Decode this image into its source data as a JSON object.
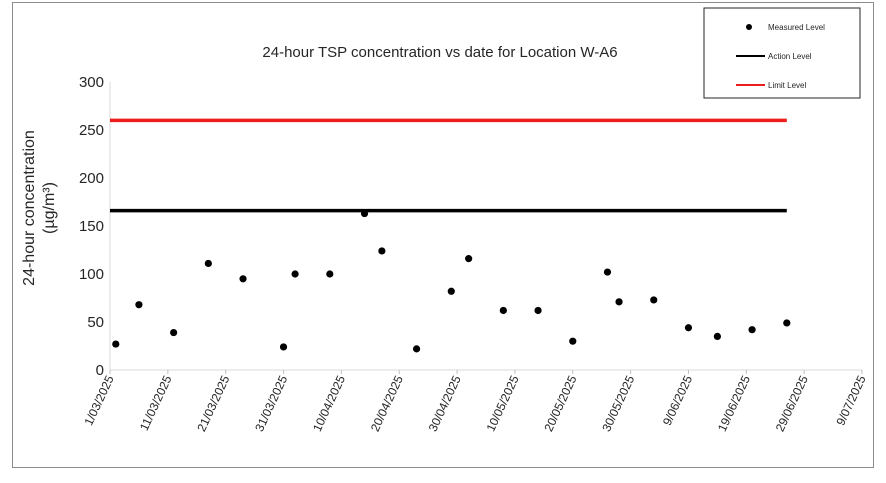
{
  "chart_data": {
    "type": "scatter",
    "title": "24-hour TSP concentration vs date for Location W-A6",
    "ylabel_line1": "24-hour concentration",
    "ylabel_line2": "(µg/m³)",
    "ylim": [
      0,
      300
    ],
    "yticks": [
      0,
      50,
      100,
      150,
      200,
      250,
      300
    ],
    "xlim": [
      "2025-03-01",
      "2025-07-09"
    ],
    "xtick_labels": [
      "1/03/2025",
      "11/03/2025",
      "21/03/2025",
      "31/03/2025",
      "10/04/2025",
      "20/04/2025",
      "30/04/2025",
      "10/05/2025",
      "20/05/2025",
      "30/05/2025",
      "9/06/2025",
      "19/06/2025",
      "29/06/2025",
      "9/07/2025"
    ],
    "grid": false,
    "legend_position": "top-right",
    "legend": {
      "measured": "Measured Level",
      "action": "Action Level",
      "limit": "Limit Level"
    },
    "series": [
      {
        "name": "Measured Level",
        "kind": "points",
        "color": "#000000",
        "x": [
          "2025-03-02",
          "2025-03-06",
          "2025-03-12",
          "2025-03-18",
          "2025-03-24",
          "2025-03-31",
          "2025-04-02",
          "2025-04-08",
          "2025-04-14",
          "2025-04-17",
          "2025-04-23",
          "2025-04-29",
          "2025-05-02",
          "2025-05-08",
          "2025-05-14",
          "2025-05-20",
          "2025-05-26",
          "2025-05-28",
          "2025-06-03",
          "2025-06-09",
          "2025-06-14",
          "2025-06-20",
          "2025-06-26"
        ],
        "y": [
          27,
          68,
          39,
          111,
          95,
          24,
          100,
          100,
          163,
          124,
          22,
          82,
          116,
          62,
          62,
          30,
          102,
          71,
          73,
          44,
          35,
          42,
          49
        ]
      },
      {
        "name": "Action Level",
        "kind": "line",
        "color": "#000000",
        "x": [
          "2025-03-01",
          "2025-06-26"
        ],
        "y": [
          166,
          166
        ]
      },
      {
        "name": "Limit Level",
        "kind": "line",
        "color": "#ee1c1c",
        "x": [
          "2025-03-01",
          "2025-06-26"
        ],
        "y": [
          260,
          260
        ]
      }
    ]
  }
}
